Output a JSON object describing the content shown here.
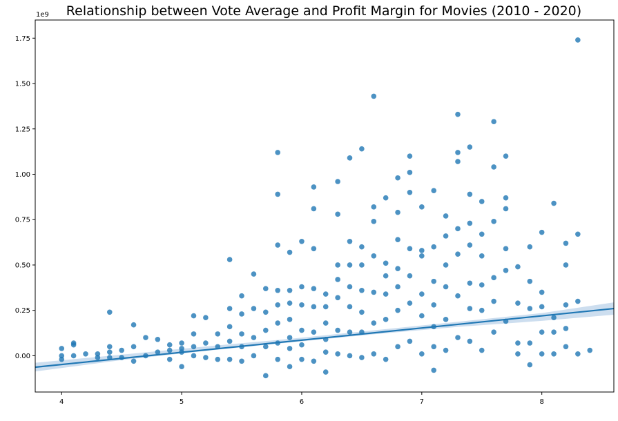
{
  "chart_data": {
    "type": "scatter",
    "title": "Relationship between Vote Average and Profit Margin for Movies (2010 - 2020)",
    "xlabel": "",
    "ylabel": "",
    "xlim": [
      3.78,
      8.6
    ],
    "ylim": [
      -0.2,
      1.85
    ],
    "y_offset_text": "1e9",
    "x_ticks": [
      4,
      5,
      6,
      7,
      8
    ],
    "x_tick_labels": [
      "4",
      "5",
      "6",
      "7",
      "8"
    ],
    "y_ticks": [
      0.0,
      0.25,
      0.5,
      0.75,
      1.0,
      1.25,
      1.5,
      1.75
    ],
    "y_tick_labels": [
      "0.00",
      "0.25",
      "0.50",
      "0.75",
      "1.00",
      "1.25",
      "1.50",
      "1.75"
    ],
    "grid": false,
    "legend": "none",
    "colors": {
      "points": "#1f77b4",
      "regression_line": "#1f77b4",
      "confidence_band": "#bcd3ea"
    },
    "regression": {
      "x": [
        3.78,
        8.6
      ],
      "y": [
        -0.063,
        0.26
      ]
    },
    "confidence_band": {
      "x": [
        3.78,
        4.5,
        5.2,
        5.9,
        6.6,
        7.3,
        8.0,
        8.6
      ],
      "lower": [
        -0.087,
        -0.024,
        0.027,
        0.073,
        0.118,
        0.159,
        0.192,
        0.226
      ],
      "upper": [
        -0.039,
        0.006,
        0.051,
        0.093,
        0.14,
        0.187,
        0.235,
        0.294
      ]
    },
    "points": {
      "x": [
        4.0,
        4.0,
        4.0,
        4.1,
        4.1,
        4.1,
        4.2,
        4.3,
        4.3,
        4.4,
        4.4,
        4.4,
        4.4,
        4.5,
        4.5,
        4.6,
        4.6,
        4.6,
        4.7,
        4.7,
        4.8,
        4.8,
        4.9,
        4.9,
        4.9,
        5.0,
        5.0,
        5.0,
        5.0,
        5.1,
        5.1,
        5.1,
        5.1,
        5.2,
        5.2,
        5.2,
        5.3,
        5.3,
        5.3,
        5.4,
        5.4,
        5.4,
        5.4,
        5.4,
        5.5,
        5.5,
        5.5,
        5.5,
        5.5,
        5.6,
        5.6,
        5.6,
        5.6,
        5.7,
        5.7,
        5.7,
        5.7,
        5.7,
        5.8,
        5.8,
        5.8,
        5.8,
        5.8,
        5.8,
        5.8,
        5.8,
        5.9,
        5.9,
        5.9,
        5.9,
        5.9,
        5.9,
        5.9,
        6.0,
        6.0,
        6.0,
        6.0,
        6.0,
        6.0,
        6.1,
        6.1,
        6.1,
        6.1,
        6.1,
        6.1,
        6.1,
        6.2,
        6.2,
        6.2,
        6.2,
        6.2,
        6.2,
        6.3,
        6.3,
        6.3,
        6.3,
        6.3,
        6.3,
        6.3,
        6.4,
        6.4,
        6.4,
        6.4,
        6.4,
        6.4,
        6.4,
        6.5,
        6.5,
        6.5,
        6.5,
        6.5,
        6.5,
        6.5,
        6.6,
        6.6,
        6.6,
        6.6,
        6.6,
        6.6,
        6.6,
        6.7,
        6.7,
        6.7,
        6.7,
        6.7,
        6.7,
        6.8,
        6.8,
        6.8,
        6.8,
        6.8,
        6.8,
        6.8,
        6.9,
        6.9,
        6.9,
        6.9,
        6.9,
        6.9,
        6.9,
        7.0,
        7.0,
        7.0,
        7.0,
        7.0,
        7.0,
        7.1,
        7.1,
        7.1,
        7.1,
        7.1,
        7.1,
        7.1,
        7.2,
        7.2,
        7.2,
        7.2,
        7.2,
        7.2,
        7.3,
        7.3,
        7.3,
        7.3,
        7.3,
        7.3,
        7.3,
        7.4,
        7.4,
        7.4,
        7.4,
        7.4,
        7.4,
        7.4,
        7.5,
        7.5,
        7.5,
        7.5,
        7.5,
        7.5,
        7.6,
        7.6,
        7.6,
        7.6,
        7.6,
        7.6,
        7.7,
        7.7,
        7.7,
        7.7,
        7.7,
        7.7,
        7.8,
        7.8,
        7.8,
        7.8,
        7.9,
        7.9,
        7.9,
        7.9,
        7.9,
        8.0,
        8.0,
        8.0,
        8.0,
        8.0,
        8.1,
        8.1,
        8.1,
        8.1,
        8.2,
        8.2,
        8.2,
        8.2,
        8.2,
        8.3,
        8.3,
        8.3,
        8.3,
        8.4
      ],
      "y": [
        0.04,
        0.0,
        -0.02,
        0.07,
        0.06,
        0.0,
        0.01,
        0.01,
        -0.01,
        0.24,
        0.05,
        0.02,
        -0.01,
        0.03,
        -0.01,
        0.17,
        0.05,
        -0.03,
        0.1,
        0.0,
        0.09,
        0.02,
        0.06,
        0.03,
        -0.02,
        0.07,
        0.04,
        0.02,
        -0.06,
        0.22,
        0.12,
        0.05,
        0.0,
        0.21,
        0.07,
        -0.01,
        0.12,
        0.05,
        -0.02,
        0.53,
        0.26,
        0.16,
        0.08,
        -0.02,
        0.33,
        0.23,
        0.12,
        0.05,
        -0.03,
        0.45,
        0.26,
        0.1,
        0.0,
        0.37,
        0.24,
        0.14,
        0.05,
        -0.11,
        1.12,
        0.89,
        0.61,
        0.36,
        0.28,
        0.18,
        0.07,
        -0.02,
        0.57,
        0.36,
        0.29,
        0.2,
        0.1,
        0.04,
        -0.06,
        0.63,
        0.38,
        0.28,
        0.14,
        0.06,
        -0.02,
        0.93,
        0.81,
        0.59,
        0.37,
        0.27,
        0.13,
        -0.03,
        0.34,
        0.27,
        0.18,
        0.09,
        0.02,
        -0.09,
        0.96,
        0.78,
        0.5,
        0.42,
        0.32,
        0.14,
        0.01,
        1.09,
        0.63,
        0.5,
        0.38,
        0.27,
        0.13,
        0.0,
        1.14,
        0.6,
        0.5,
        0.36,
        0.24,
        0.13,
        -0.01,
        1.43,
        0.82,
        0.74,
        0.55,
        0.35,
        0.18,
        0.01,
        0.87,
        0.51,
        0.44,
        0.34,
        0.2,
        -0.02,
        0.98,
        0.79,
        0.64,
        0.48,
        0.38,
        0.25,
        0.05,
        1.1,
        1.01,
        0.9,
        0.59,
        0.44,
        0.29,
        0.08,
        0.82,
        0.58,
        0.55,
        0.34,
        0.22,
        0.01,
        0.91,
        0.6,
        0.41,
        0.28,
        0.16,
        0.05,
        -0.08,
        0.77,
        0.66,
        0.5,
        0.38,
        0.2,
        0.03,
        1.33,
        1.12,
        1.07,
        0.7,
        0.56,
        0.33,
        0.1,
        1.15,
        0.89,
        0.73,
        0.61,
        0.4,
        0.26,
        0.08,
        0.85,
        0.67,
        0.55,
        0.39,
        0.25,
        0.03,
        1.29,
        1.04,
        0.74,
        0.43,
        0.3,
        0.13,
        1.1,
        0.87,
        0.81,
        0.59,
        0.47,
        0.19,
        0.49,
        0.29,
        0.07,
        0.01,
        0.6,
        0.41,
        0.26,
        0.07,
        -0.05,
        0.68,
        0.35,
        0.27,
        0.13,
        0.01,
        0.84,
        0.21,
        0.13,
        0.01,
        0.62,
        0.5,
        0.28,
        0.15,
        0.05,
        1.74,
        0.67,
        0.3,
        0.01,
        0.03
      ]
    }
  }
}
